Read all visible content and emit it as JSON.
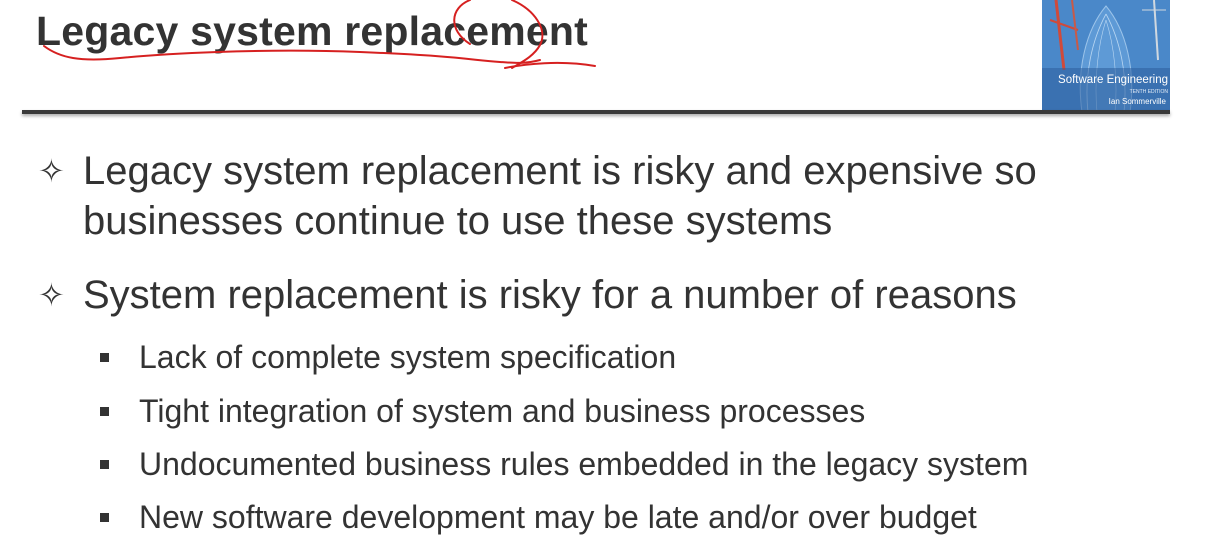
{
  "slide": {
    "title": "Legacy system replacement",
    "cover": {
      "title": "Software Engineering",
      "edition": "TENTH EDITION",
      "author": "Ian Sommerville"
    },
    "bullets": [
      {
        "marker": "✧",
        "text": "Legacy system replacement is risky and expensive so businesses continue to use these systems"
      },
      {
        "marker": "✧",
        "text": "System replacement is risky for a number of reasons"
      }
    ],
    "sub_bullets": [
      "Lack of complete system specification",
      "Tight integration of system and business processes",
      "Undocumented business rules embedded in the legacy system",
      "New software development may be late and/or over budget"
    ]
  },
  "colors": {
    "text": "#333333",
    "rule": "#3a3a3a",
    "annotation_ink": "#d62020",
    "cover_blue": "#3c78bd"
  }
}
